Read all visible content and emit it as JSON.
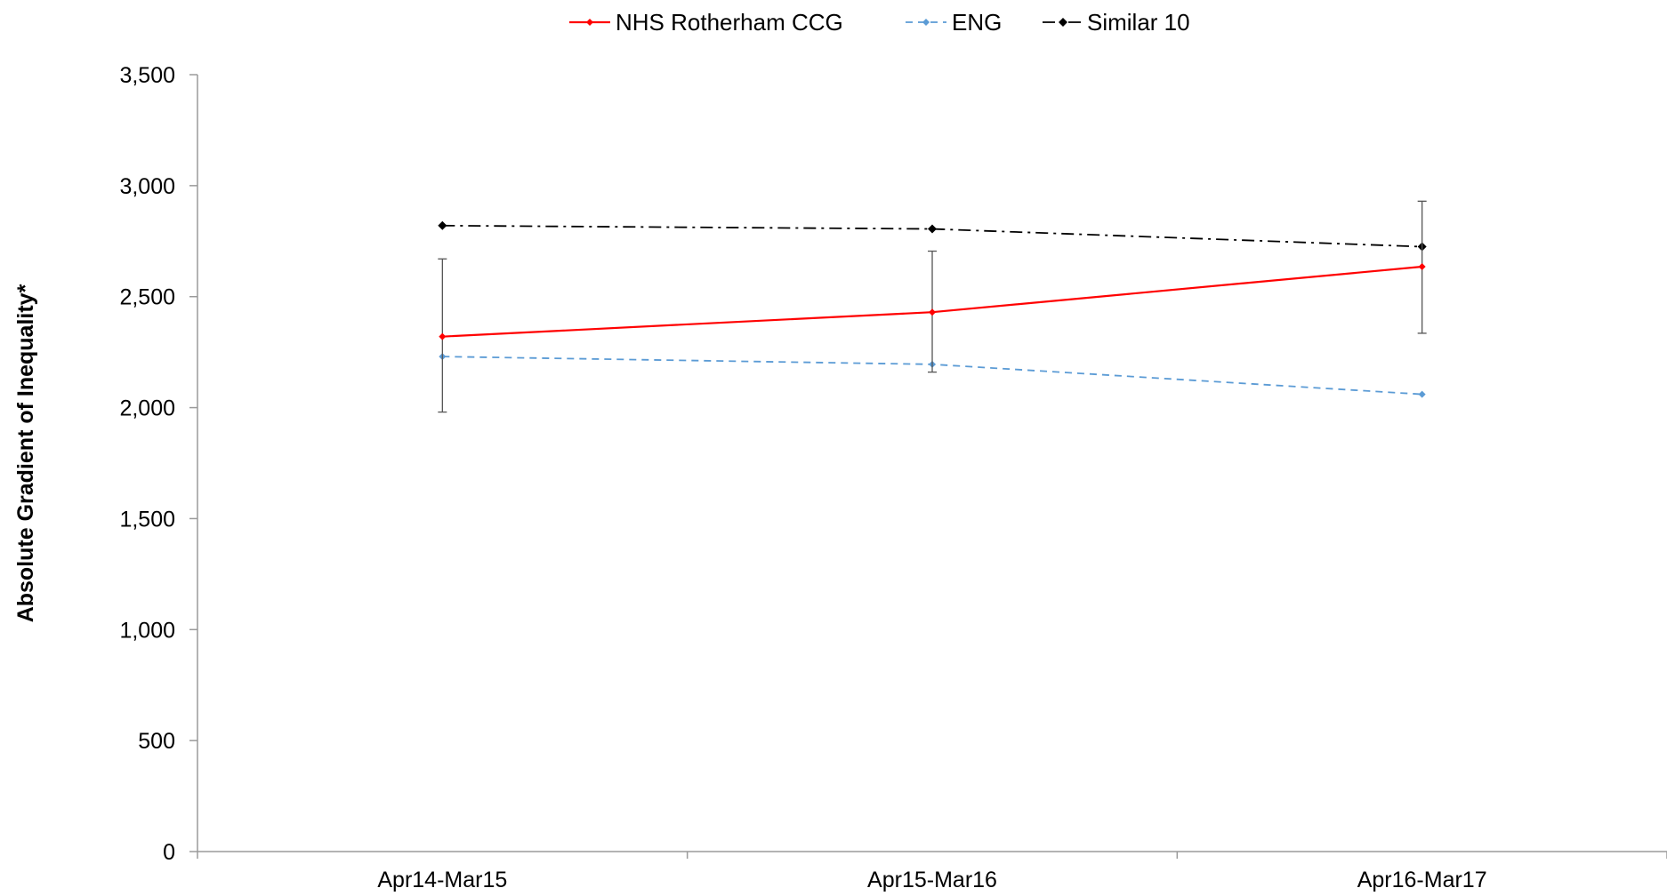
{
  "chart_data": {
    "type": "line",
    "title": "",
    "xlabel": "",
    "ylabel": "Absolute Gradient of Inequality*",
    "categories": [
      "Apr14-Mar15",
      "Apr15-Mar16",
      "Apr16-Mar17"
    ],
    "ylim": [
      0,
      3500
    ],
    "yticks": [
      0,
      500,
      1000,
      1500,
      2000,
      2500,
      3000,
      3500
    ],
    "ytick_labels": [
      "0",
      "500",
      "1,000",
      "1,500",
      "2,000",
      "2,500",
      "3,000",
      "3,500"
    ],
    "grid": false,
    "legend_position": "top",
    "series": [
      {
        "name": "NHS Rotherham CCG",
        "values": [
          2320,
          2430,
          2635
        ],
        "error_low": [
          1980,
          2160,
          2335
        ],
        "error_high": [
          2670,
          2705,
          2930
        ],
        "color": "#ff0000",
        "line_style": "solid",
        "marker": "diamond"
      },
      {
        "name": "ENG",
        "values": [
          2230,
          2195,
          2060
        ],
        "color": "#5b9bd5",
        "line_style": "dashed",
        "marker": "diamond"
      },
      {
        "name": "Similar 10",
        "values": [
          2820,
          2805,
          2725
        ],
        "color": "#000000",
        "line_style": "dashdot",
        "marker": "diamond"
      }
    ]
  }
}
